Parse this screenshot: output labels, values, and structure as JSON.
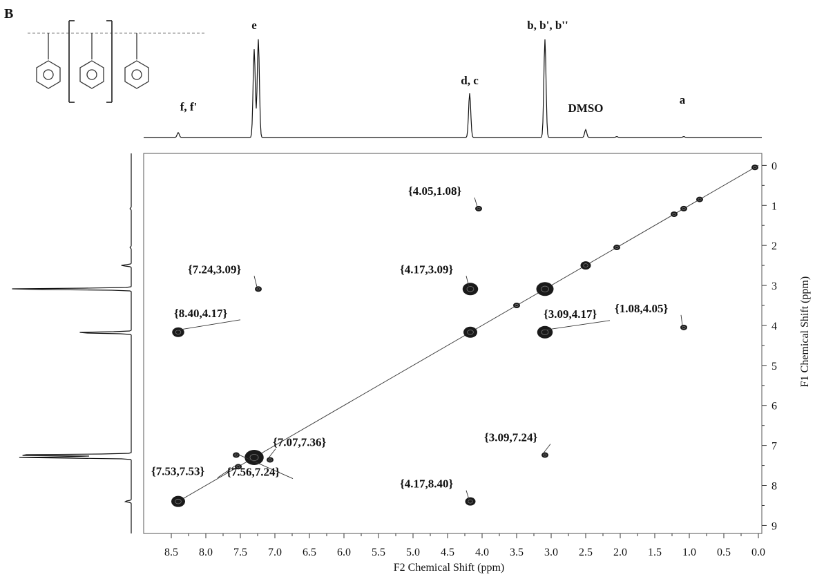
{
  "panel_letter": "B",
  "chart_data": {
    "type": "scatter",
    "subtype": "2D COSY NMR contour plot with 1D projections",
    "xlabel": "F2 Chemical Shift (ppm)",
    "ylabel": "F1 Chemical Shift (ppm)",
    "xlim": [
      8.9,
      -0.05
    ],
    "ylim": [
      -0.3,
      9.2
    ],
    "x_ticks": [
      "8.5",
      "8.0",
      "7.5",
      "7.0",
      "6.5",
      "6.0",
      "5.5",
      "5.0",
      "4.5",
      "4.0",
      "3.5",
      "3.0",
      "2.5",
      "2.0",
      "1.5",
      "1.0",
      "0.5",
      "0.0"
    ],
    "y_ticks": [
      "0",
      "1",
      "2",
      "3",
      "4",
      "5",
      "6",
      "7",
      "8",
      "9"
    ],
    "diagonal": true,
    "top_projection_labels": [
      {
        "text": "f, f'",
        "shift": 8.25
      },
      {
        "text": "e",
        "shift": 7.3
      },
      {
        "text": "d, c",
        "shift": 4.18
      },
      {
        "text": "b, b', b''",
        "shift": 3.05
      },
      {
        "text": "DMSO",
        "shift": 2.5
      },
      {
        "text": "a",
        "shift": 1.1
      }
    ],
    "cross_peaks": [
      {
        "x": 4.05,
        "y": 1.08,
        "label": "{4.05,1.08}"
      },
      {
        "x": 7.24,
        "y": 3.09,
        "label": "{7.24,3.09}"
      },
      {
        "x": 4.17,
        "y": 3.09,
        "label": "{4.17,3.09}"
      },
      {
        "x": 8.4,
        "y": 4.17,
        "label": "{8.40,4.17}"
      },
      {
        "x": 3.09,
        "y": 4.17,
        "label": "{3.09,4.17}"
      },
      {
        "x": 1.08,
        "y": 4.05,
        "label": "{1.08,4.05}"
      },
      {
        "x": 7.07,
        "y": 7.36,
        "label": "{7.07,7.36}"
      },
      {
        "x": 7.53,
        "y": 7.53,
        "label": "{7.53,7.53}"
      },
      {
        "x": 7.56,
        "y": 7.24,
        "label": "{7.56,7.24}"
      },
      {
        "x": 3.09,
        "y": 7.24,
        "label": "{3.09,7.24}"
      },
      {
        "x": 4.17,
        "y": 8.4,
        "label": "{4.17,8.40}"
      }
    ],
    "diagonal_peaks": [
      {
        "x": 8.4,
        "y": 8.4
      },
      {
        "x": 7.3,
        "y": 7.3
      },
      {
        "x": 4.17,
        "y": 4.17
      },
      {
        "x": 3.5,
        "y": 3.5
      },
      {
        "x": 3.09,
        "y": 3.09
      },
      {
        "x": 2.5,
        "y": 2.5
      },
      {
        "x": 2.05,
        "y": 2.05
      },
      {
        "x": 1.22,
        "y": 1.22
      },
      {
        "x": 1.08,
        "y": 1.08
      },
      {
        "x": 0.85,
        "y": 0.85
      },
      {
        "x": 0.05,
        "y": 0.05
      }
    ],
    "projection_peaks": [
      {
        "shift": 8.4,
        "intensity": 0.05
      },
      {
        "shift": 7.3,
        "intensity": 0.9
      },
      {
        "shift": 7.24,
        "intensity": 1.0
      },
      {
        "shift": 4.18,
        "intensity": 0.45
      },
      {
        "shift": 3.09,
        "intensity": 1.0
      },
      {
        "shift": 2.5,
        "intensity": 0.08
      },
      {
        "shift": 2.05,
        "intensity": 0.01
      },
      {
        "shift": 1.08,
        "intensity": 0.01
      }
    ]
  }
}
